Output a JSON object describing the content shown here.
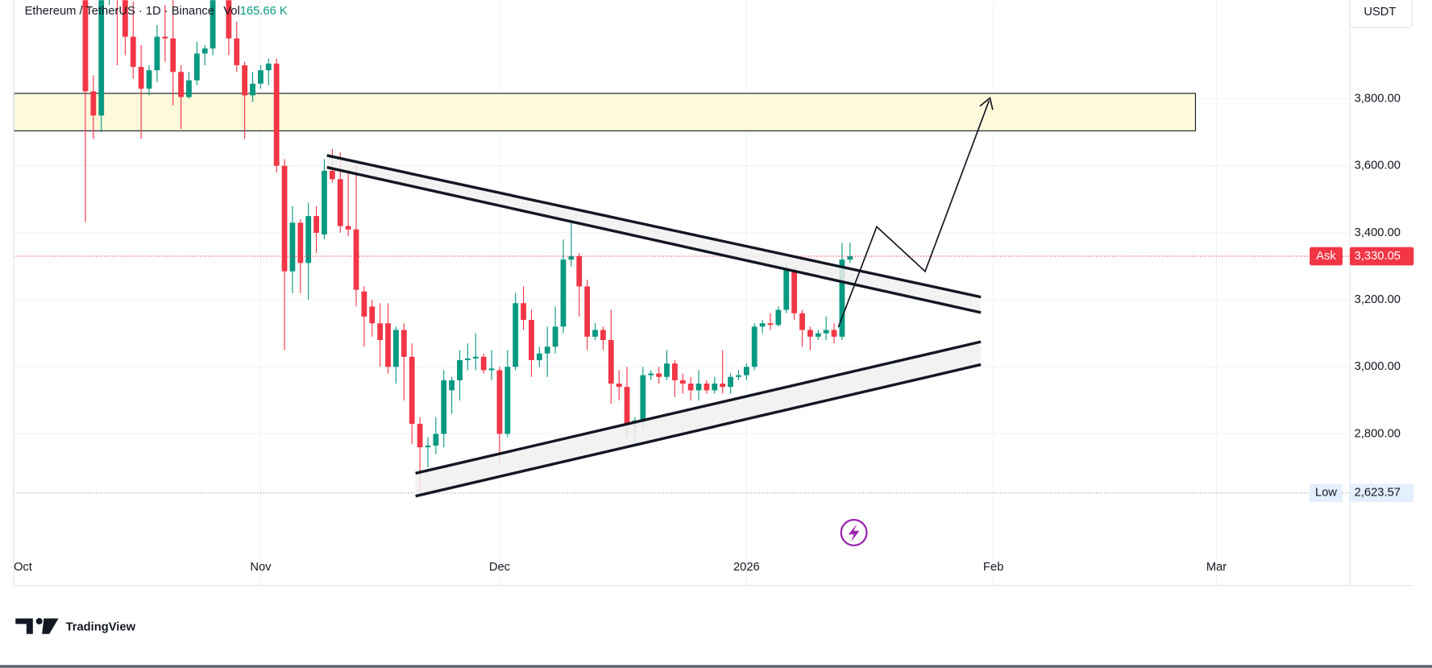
{
  "chart_data": {
    "type": "candlestick",
    "title": "Ethereum / TetherUS · 1D · Binance",
    "volume_label": "Vol",
    "volume_text": "165.66 K",
    "currency": "USDT",
    "up_color": "#089981",
    "down_color": "#f23645",
    "grid": true,
    "xlim": [
      0,
      167.4
    ],
    "xticks": [
      {
        "value": 0,
        "label": "Oct"
      },
      {
        "value": 31,
        "label": "Nov"
      },
      {
        "value": 61,
        "label": "Dec"
      },
      {
        "value": 92,
        "label": "2026"
      },
      {
        "value": 123,
        "label": "Feb"
      },
      {
        "value": 151,
        "label": "Mar"
      }
    ],
    "ylim": [
      2459,
      4094
    ],
    "yticks": [
      {
        "value": 2800,
        "label": "2,800.00"
      },
      {
        "value": 3000,
        "label": "3,000.00"
      },
      {
        "value": 3200,
        "label": "3,200.00"
      },
      {
        "value": 3400,
        "label": "3,400.00"
      },
      {
        "value": 3600,
        "label": "3,600.00"
      },
      {
        "value": 3800,
        "label": "3,800.00"
      }
    ],
    "x": [
      9,
      10,
      11,
      12,
      13,
      14,
      15,
      16,
      17,
      18,
      19,
      20,
      21,
      22,
      23,
      24,
      25,
      26,
      27,
      28,
      29,
      30,
      31,
      32,
      33,
      34,
      35,
      36,
      37,
      38,
      39,
      40,
      41,
      42,
      43,
      44,
      45,
      46,
      47,
      48,
      49,
      50,
      51,
      52,
      53,
      54,
      55,
      56,
      57,
      58,
      59,
      60,
      61,
      62,
      63,
      64,
      65,
      66,
      67,
      68,
      69,
      70,
      71,
      72,
      73,
      74,
      75,
      76,
      77,
      78,
      79,
      80,
      81,
      82,
      83,
      84,
      85,
      86,
      87,
      88,
      89,
      90,
      91,
      92,
      93,
      94,
      95,
      96,
      97,
      98,
      99,
      100,
      101,
      102,
      103,
      104,
      105
    ],
    "open": [
      4370,
      3822,
      3750,
      4150,
      4245,
      4125,
      3985,
      3895,
      3830,
      3885,
      3985,
      3980,
      3880,
      3805,
      3855,
      3935,
      3950,
      4140,
      4120,
      3980,
      3900,
      3810,
      3845,
      3885,
      3905,
      3600,
      3285,
      3430,
      3310,
      3450,
      3395,
      3585,
      3560,
      3420,
      3410,
      3225,
      3180,
      3130,
      3130,
      3000,
      3110,
      3030,
      2830,
      2760,
      2765,
      2800,
      2930,
      2960,
      3020,
      3025,
      3030,
      2990,
      2990,
      2800,
      3000,
      3190,
      3140,
      3020,
      3040,
      3060,
      3120,
      3320,
      3330,
      3240,
      3090,
      3110,
      3080,
      2950,
      2940,
      2830,
      2840,
      2975,
      2980,
      2970,
      3010,
      2960,
      2950,
      2930,
      2950,
      2930,
      2950,
      2940,
      2970,
      2975,
      3000,
      3120,
      3130,
      3125,
      3170,
      3290,
      3160,
      3110,
      3090,
      3100,
      3110,
      3090,
      3320
    ],
    "high": [
      4390,
      3870,
      4170,
      4290,
      4260,
      4200,
      4090,
      3960,
      3900,
      4020,
      4080,
      4100,
      3900,
      3880,
      3970,
      3960,
      4150,
      4250,
      4140,
      4030,
      3910,
      3880,
      3900,
      3920,
      3920,
      3620,
      3480,
      3440,
      3490,
      3480,
      3620,
      3650,
      3640,
      3590,
      3600,
      3240,
      3200,
      3190,
      3190,
      3120,
      3130,
      3070,
      2850,
      2790,
      2850,
      2990,
      2970,
      3050,
      3070,
      3100,
      3040,
      3050,
      3000,
      3050,
      3220,
      3240,
      3170,
      3060,
      3120,
      3180,
      3380,
      3440,
      3340,
      3260,
      3130,
      3120,
      3170,
      2990,
      3000,
      2850,
      3000,
      2990,
      3000,
      3050,
      3020,
      2980,
      2970,
      2990,
      2960,
      2970,
      3050,
      2980,
      2990,
      3010,
      3130,
      3140,
      3160,
      3180,
      3310,
      3300,
      3170,
      3120,
      3110,
      3150,
      3130,
      3370,
      3370
    ],
    "low": [
      3432,
      3680,
      3700,
      4080,
      3900,
      3930,
      3860,
      3680,
      3810,
      3850,
      3910,
      3780,
      3710,
      3800,
      3840,
      3900,
      3930,
      4110,
      3930,
      3880,
      3680,
      3790,
      3830,
      3840,
      3580,
      3050,
      3220,
      3220,
      3200,
      3340,
      3380,
      3550,
      3400,
      3390,
      3180,
      3060,
      3090,
      3000,
      2980,
      2950,
      2900,
      2770,
      2623.57,
      2700,
      2740,
      2760,
      2860,
      2900,
      2990,
      2990,
      2980,
      2960,
      2710,
      2790,
      2990,
      3110,
      2970,
      3000,
      2970,
      3040,
      3100,
      3300,
      3150,
      3050,
      3080,
      3050,
      2890,
      2900,
      2790,
      2772,
      2820,
      2960,
      2950,
      2960,
      2910,
      2920,
      2900,
      2900,
      2920,
      2920,
      2920,
      2920,
      2960,
      2960,
      2990,
      3100,
      3110,
      3120,
      3160,
      3140,
      3060,
      3050,
      3080,
      3080,
      3070,
      3080,
      3310
    ],
    "close": [
      3822,
      3750,
      4150,
      4245,
      4125,
      3985,
      3895,
      3830,
      3885,
      3985,
      3980,
      3880,
      3805,
      3855,
      3935,
      3950,
      4140,
      4120,
      3980,
      3900,
      3810,
      3845,
      3885,
      3905,
      3600,
      3285,
      3430,
      3310,
      3450,
      3400,
      3585,
      3560,
      3420,
      3410,
      3230,
      3150,
      3130,
      3080,
      3000,
      3110,
      3030,
      2830,
      2760,
      2765,
      2800,
      2960,
      2960,
      3020,
      3025,
      3030,
      2990,
      2995,
      2800,
      3000,
      3190,
      3140,
      3020,
      3040,
      3060,
      3120,
      3320,
      3330,
      3240,
      3090,
      3110,
      3080,
      2950,
      2940,
      2830,
      2840,
      2975,
      2980,
      2970,
      3010,
      2960,
      2950,
      2930,
      2950,
      2930,
      2950,
      2940,
      2970,
      2975,
      3000,
      3120,
      3130,
      3125,
      3170,
      3290,
      3160,
      3110,
      3090,
      3100,
      3110,
      3090,
      3320,
      3330
    ],
    "markers": [
      {
        "name": "Ask",
        "value": 3330.05,
        "value_label": "3,330.05",
        "color": "#f23645"
      },
      {
        "name": "Low",
        "value": 2623.57,
        "value_label": "2,623.57",
        "color": "#e3effd"
      }
    ]
  },
  "footer": {
    "brand": "TradingView"
  }
}
